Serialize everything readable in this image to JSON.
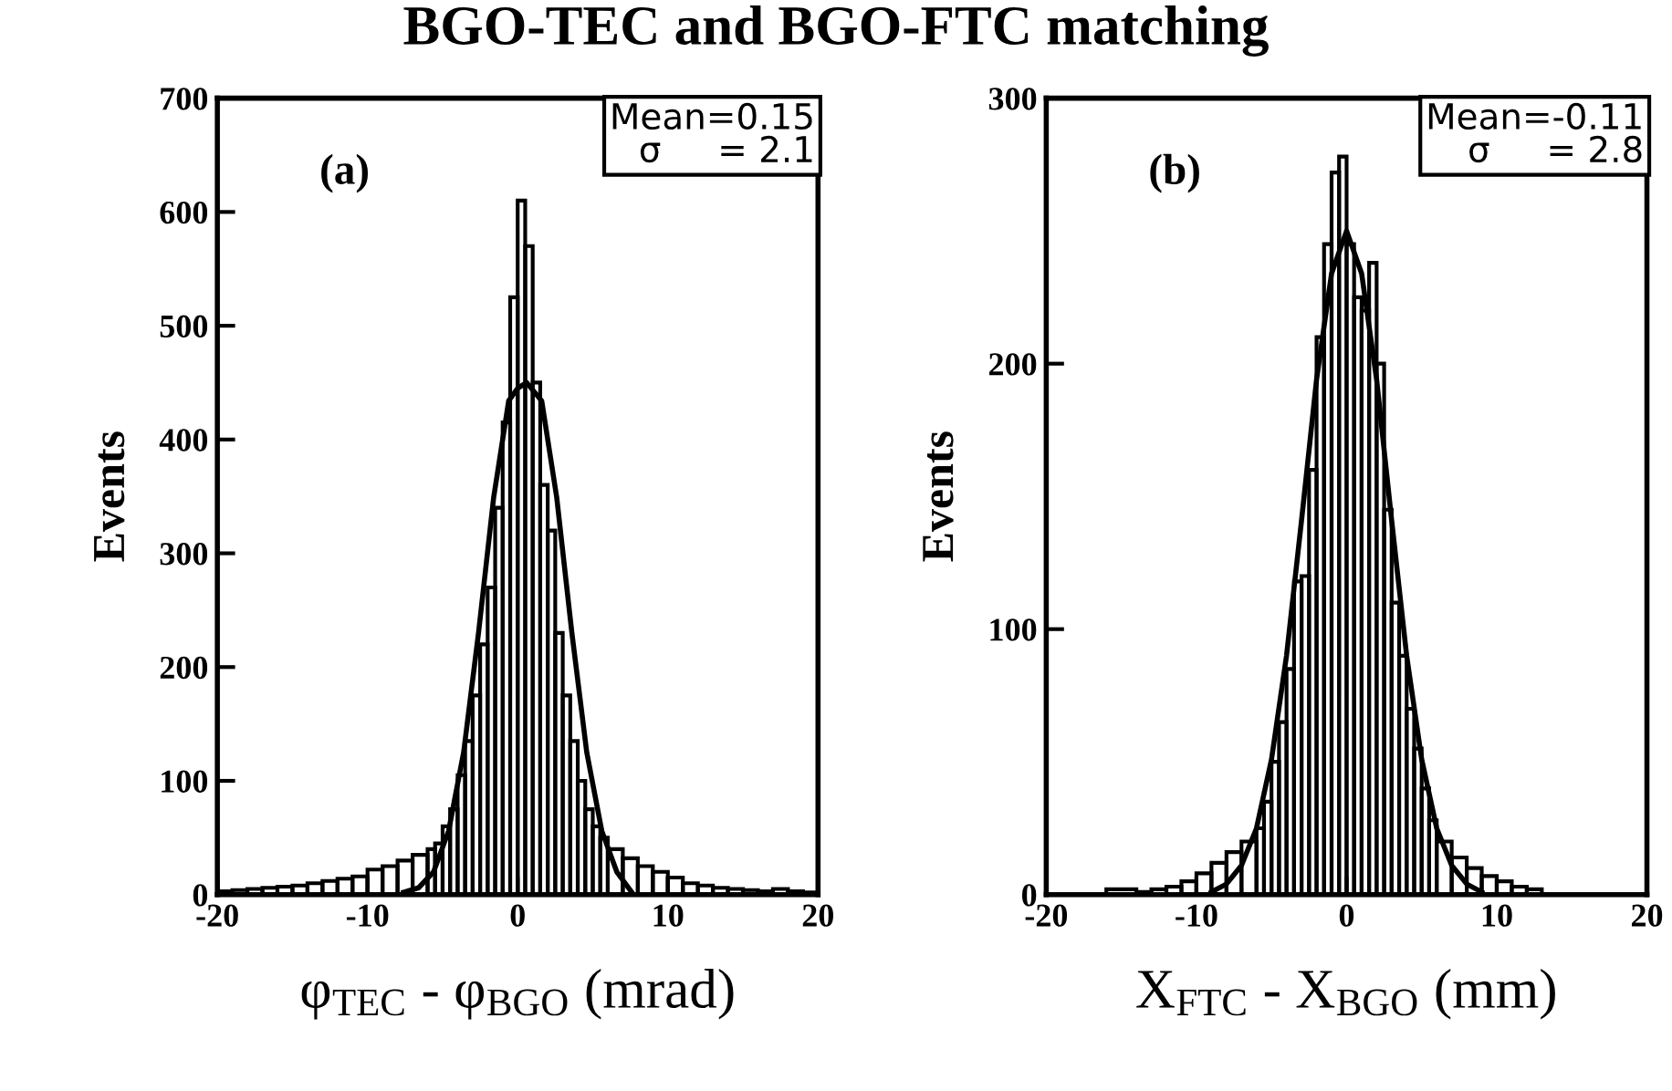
{
  "chart_data": [
    {
      "type": "histogram",
      "title": "BGO-TEC and BGO-FTC matching",
      "xlabel": "φ$_{TEC}$ - φ$_{BGO}$ (mrad)",
      "ylabel": "Events",
      "annotations": [
        "(a)",
        "Mean=0.15",
        "σ     = 2.1"
      ],
      "xlim": [
        -20,
        20
      ],
      "xticks": [
        -20,
        -10,
        0,
        10,
        20
      ],
      "ylim": [
        0,
        700
      ],
      "yticks": [
        0,
        100,
        200,
        300,
        400,
        500,
        600,
        700
      ],
      "grid": false,
      "series": [
        {
          "type": "histogram",
          "color": "#000000",
          "bins": [
            -20,
            -19,
            -18,
            -17,
            -16,
            -15,
            -14,
            -13,
            -12,
            -11,
            -10,
            -9,
            -8,
            -7,
            -6,
            -5.5,
            -5,
            -4.5,
            -4,
            -3.5,
            -3,
            -2.5,
            -2,
            -1.5,
            -1,
            -0.5,
            0,
            0.5,
            1,
            1.5,
            2,
            2.5,
            3,
            3.5,
            4,
            4.5,
            5,
            5.5,
            6,
            7,
            8,
            9,
            10,
            11,
            12,
            13,
            14,
            15,
            16,
            17,
            18,
            19,
            20
          ],
          "values": [
            3,
            4,
            5,
            6,
            7,
            8,
            10,
            12,
            14,
            16,
            22,
            25,
            30,
            35,
            40,
            45,
            60,
            75,
            105,
            135,
            175,
            220,
            270,
            340,
            415,
            525,
            610,
            570,
            450,
            360,
            320,
            230,
            175,
            135,
            100,
            75,
            60,
            50,
            40,
            32,
            25,
            20,
            15,
            10,
            8,
            6,
            5,
            4,
            3,
            5,
            3,
            2
          ]
        },
        {
          "type": "line",
          "color": "#000000",
          "x": [
            -7.6,
            -6.6,
            -5.6,
            -4.6,
            -3.6,
            -2.6,
            -1.6,
            -0.6,
            0,
            0.6,
            1.6,
            2.6,
            3.6,
            4.6,
            5.6,
            6.6,
            7.6
          ],
          "values": [
            2,
            6,
            20,
            56,
            125,
            231,
            349,
            434,
            445,
            450,
            434,
            349,
            231,
            125,
            56,
            20,
            2
          ]
        }
      ]
    },
    {
      "type": "histogram",
      "xlabel": "X$_{FTC}$ - X$_{BGO}$ (mm)",
      "ylabel": "Events",
      "annotations": [
        "(b)",
        "Mean=-0.11",
        "σ     = 2.8"
      ],
      "xlim": [
        -20,
        20
      ],
      "xticks": [
        -20,
        -10,
        0,
        10,
        20
      ],
      "ylim": [
        0,
        300
      ],
      "yticks": [
        0,
        100,
        200,
        300
      ],
      "grid": false,
      "series": [
        {
          "type": "histogram",
          "color": "#000000",
          "bins": [
            -16,
            -14,
            -13,
            -12,
            -11,
            -10,
            -9,
            -8,
            -7,
            -6,
            -5.5,
            -5,
            -4.5,
            -4,
            -3.5,
            -3,
            -2.5,
            -2,
            -1.5,
            -1,
            -0.5,
            0,
            0.5,
            1,
            1.5,
            2,
            2.5,
            3,
            3.5,
            4,
            4.5,
            5,
            5.5,
            6,
            7,
            8,
            9,
            10,
            11,
            12,
            13
          ],
          "values": [
            2,
            1,
            2,
            3,
            5,
            8,
            12,
            16,
            20,
            25,
            35,
            50,
            65,
            85,
            118,
            120,
            160,
            210,
            245,
            272,
            278,
            245,
            225,
            220,
            238,
            200,
            145,
            110,
            90,
            70,
            55,
            40,
            28,
            20,
            14,
            10,
            7,
            5,
            3,
            2
          ]
        },
        {
          "type": "line",
          "color": "#000000",
          "x": [
            -9,
            -8,
            -7,
            -6,
            -5,
            -4,
            -3,
            -2,
            -1,
            0,
            1,
            2,
            3,
            4,
            5,
            6,
            7,
            8,
            9
          ],
          "values": [
            1,
            4,
            11,
            25,
            51,
            90,
            141,
            194,
            234,
            250,
            234,
            194,
            141,
            90,
            51,
            25,
            11,
            4,
            1
          ]
        }
      ]
    }
  ]
}
